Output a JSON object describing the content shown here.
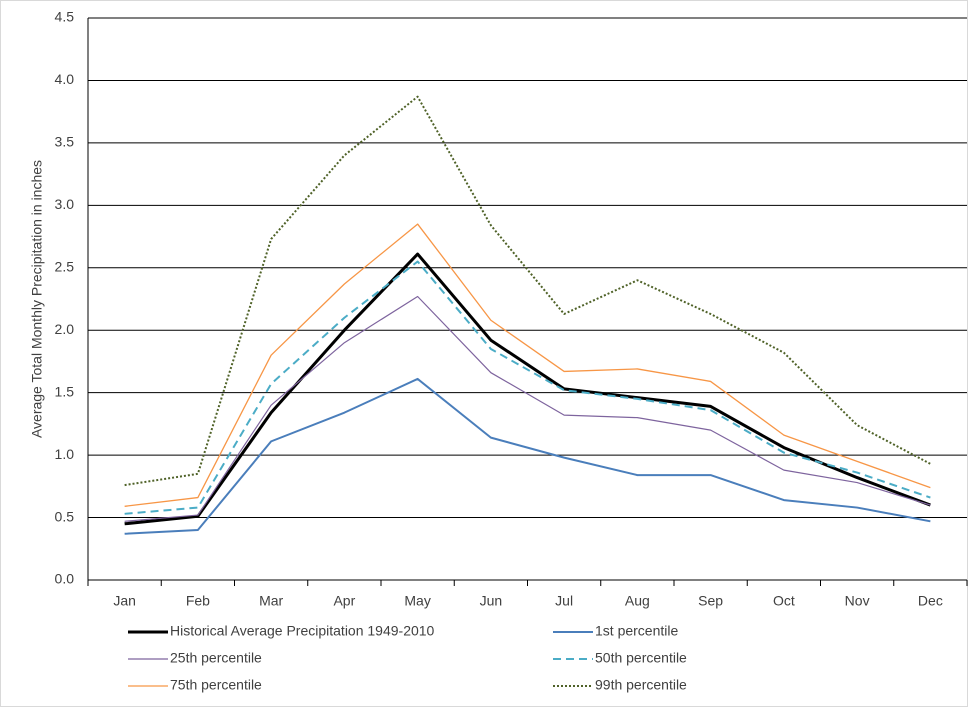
{
  "chart_data": {
    "type": "line",
    "ylabel": "Average Total Monthly Precipitation in inches",
    "categories": [
      "Jan",
      "Feb",
      "Mar",
      "Apr",
      "May",
      "Jun",
      "Jul",
      "Aug",
      "Sep",
      "Oct",
      "Nov",
      "Dec"
    ],
    "ylim": [
      0,
      4.5
    ],
    "yticks": [
      {
        "value": 0,
        "label": "0.0"
      },
      {
        "value": 0.5,
        "label": "0.5"
      },
      {
        "value": 1,
        "label": "1.0"
      },
      {
        "value": 1.5,
        "label": "1.5"
      },
      {
        "value": 2,
        "label": "2.0"
      },
      {
        "value": 2.5,
        "label": "2.5"
      },
      {
        "value": 3,
        "label": "3.0"
      },
      {
        "value": 3.5,
        "label": "3.5"
      },
      {
        "value": 4,
        "label": "4.0"
      },
      {
        "value": 4.5,
        "label": "4.5"
      }
    ],
    "grid": true,
    "series": [
      {
        "name": "Historical Average Precipitation 1949-2010",
        "color": "#000000",
        "width": 3,
        "dash": "solid",
        "values": [
          0.45,
          0.51,
          1.34,
          2.0,
          2.61,
          1.92,
          1.53,
          1.46,
          1.39,
          1.06,
          0.82,
          0.6
        ]
      },
      {
        "name": "1st percentile",
        "color": "#4a7ebb",
        "width": 2,
        "dash": "solid",
        "values": [
          0.37,
          0.4,
          1.11,
          1.34,
          1.61,
          1.14,
          0.98,
          0.84,
          0.84,
          0.64,
          0.58,
          0.47
        ]
      },
      {
        "name": "25th percentile",
        "color": "#7e649e",
        "width": 1.2,
        "dash": "solid",
        "values": [
          0.47,
          0.52,
          1.4,
          1.9,
          2.27,
          1.66,
          1.32,
          1.3,
          1.2,
          0.88,
          0.78,
          0.6
        ]
      },
      {
        "name": "50th percentile",
        "color": "#4bacc6",
        "width": 2,
        "dash": "dashed",
        "values": [
          0.53,
          0.58,
          1.57,
          2.1,
          2.55,
          1.85,
          1.52,
          1.45,
          1.36,
          1.02,
          0.86,
          0.66
        ]
      },
      {
        "name": "75th percentile",
        "color": "#f79646",
        "width": 1.3,
        "dash": "solid",
        "values": [
          0.59,
          0.66,
          1.8,
          2.37,
          2.85,
          2.08,
          1.67,
          1.69,
          1.59,
          1.16,
          0.95,
          0.74
        ]
      },
      {
        "name": "99th percentile",
        "color": "#4f6228",
        "width": 2,
        "dash": "dotted",
        "values": [
          0.76,
          0.85,
          2.73,
          3.4,
          3.87,
          2.84,
          2.13,
          2.4,
          2.13,
          1.82,
          1.24,
          0.93
        ]
      }
    ]
  }
}
